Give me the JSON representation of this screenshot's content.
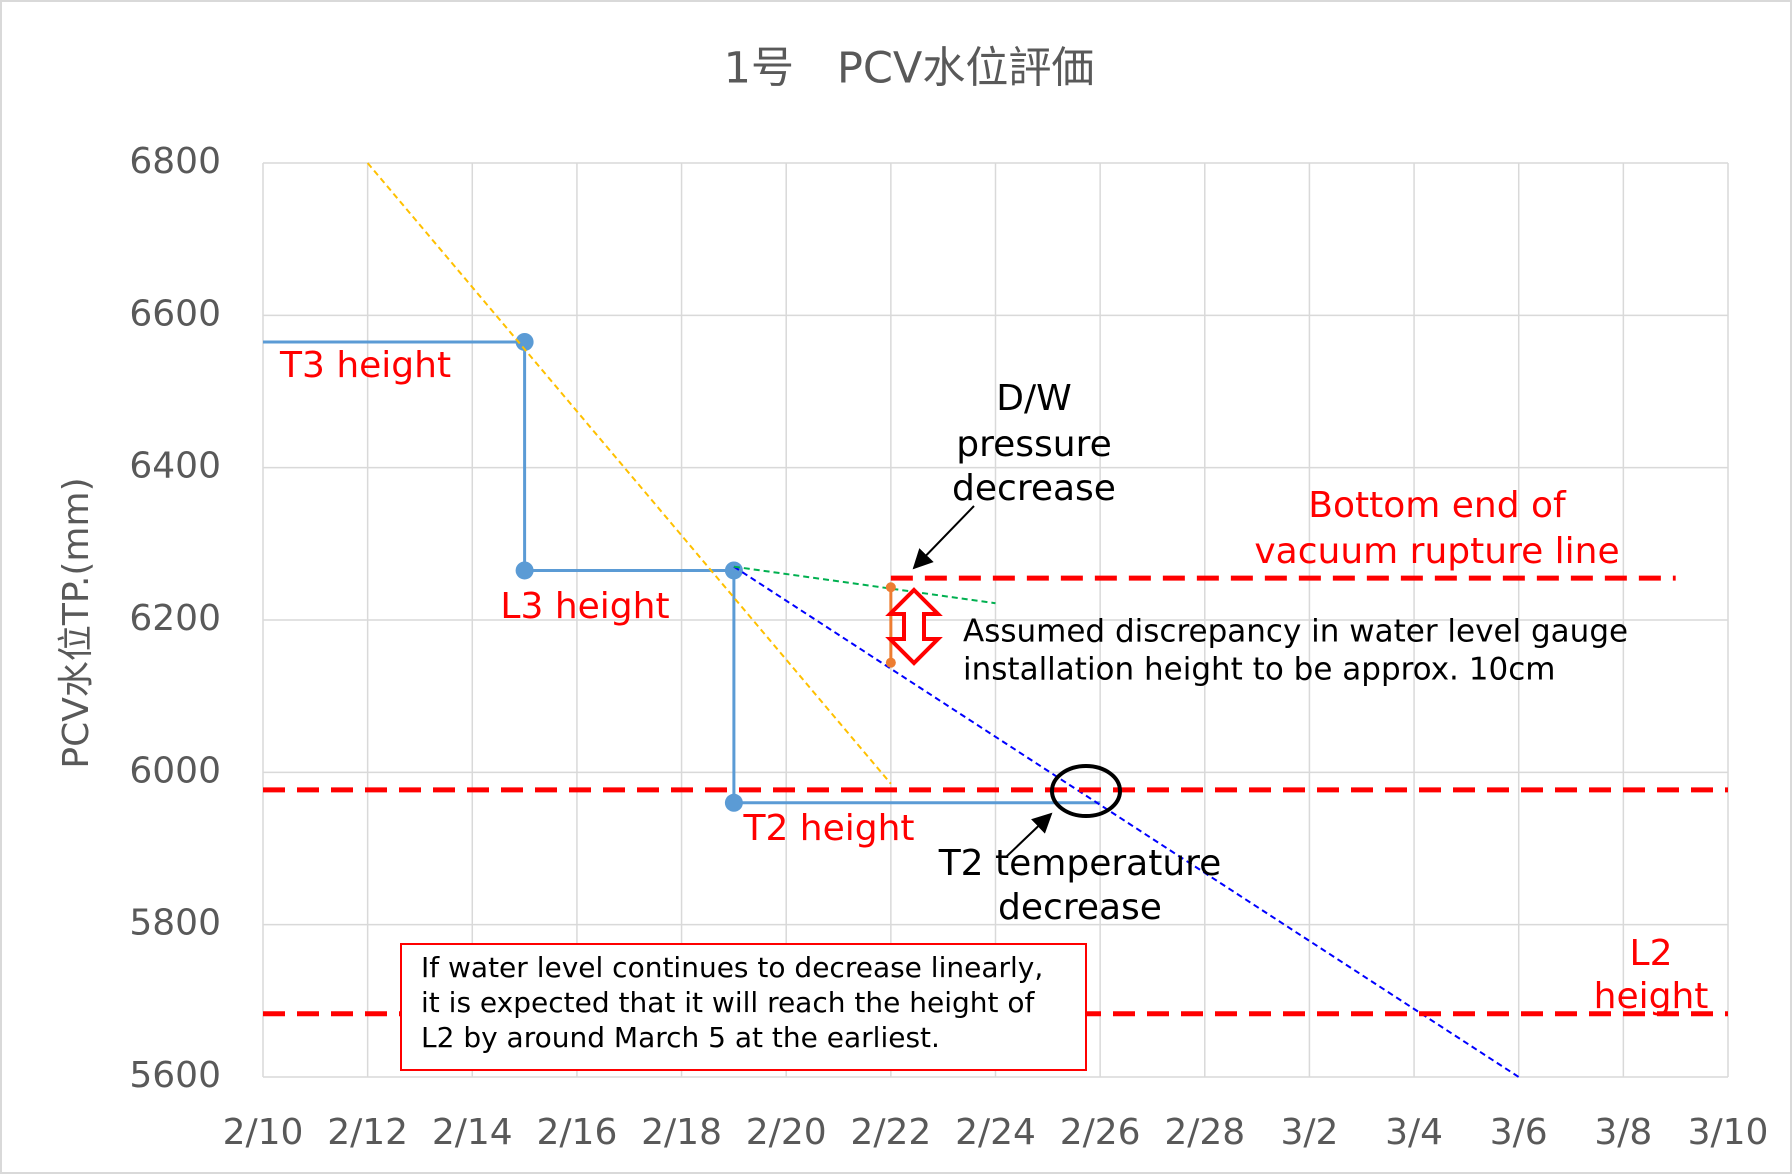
{
  "chart_data": {
    "type": "line",
    "title": "1号　PCV水位評価",
    "y_label": "PCV水位TP.(mm)",
    "xlim": [
      "2/10",
      "3/10"
    ],
    "xticks": [
      "2/10",
      "2/12",
      "2/14",
      "2/16",
      "2/18",
      "2/20",
      "2/22",
      "2/24",
      "2/26",
      "2/28",
      "3/2",
      "3/4",
      "3/6",
      "3/8",
      "3/10"
    ],
    "ylim": [
      5600,
      6800
    ],
    "yticks": [
      5600,
      5800,
      6000,
      6200,
      6400,
      6600,
      6800
    ],
    "grid": true,
    "series": [
      {
        "color": "#5b9bd5",
        "style": "solid",
        "x": [
          "2/10",
          "2/15",
          "2/15",
          "2/19",
          "2/19",
          "2/26"
        ],
        "values": [
          6565,
          6565,
          6265,
          6265,
          5960,
          5960
        ],
        "markers": [
          false,
          true,
          true,
          true,
          true,
          false
        ]
      },
      {
        "color": "#ffc000",
        "style": "dotted",
        "x": [
          "2/12",
          "2/22"
        ],
        "values": [
          6800,
          5985
        ]
      },
      {
        "color": "#0000ff",
        "style": "dotted",
        "x": [
          "2/19",
          "3/6"
        ],
        "values": [
          6270,
          5600
        ]
      },
      {
        "color": "#00b050",
        "style": "dotted",
        "x": [
          "2/19",
          "2/24"
        ],
        "values": [
          6270,
          6222
        ]
      },
      {
        "color": "#ed7d31",
        "style": "solid",
        "x": [
          "2/22",
          "2/22"
        ],
        "values": [
          6243,
          6144
        ],
        "markers": [
          true,
          true
        ]
      },
      {
        "color": "#ff0000",
        "style": "dashed",
        "x": [
          "2/22",
          "3/9"
        ],
        "values": [
          6255,
          6255
        ]
      },
      {
        "color": "#ff0000",
        "style": "dashed",
        "x": [
          "2/10",
          "3/10"
        ],
        "values": [
          5977,
          5977
        ]
      },
      {
        "color": "#ff0000",
        "style": "dashed",
        "x": [
          "2/10",
          "3/10"
        ],
        "values": [
          5683,
          5683
        ]
      }
    ],
    "annotations": [
      [
        "T3 height"
      ],
      [
        "L3 height"
      ],
      [
        "T2 height"
      ],
      [
        "D/W",
        "pressure",
        "decrease"
      ],
      [
        "Bottom end of",
        "vacuum rupture line"
      ],
      [
        "Assumed discrepancy in water level gauge",
        "installation height to be approx. 10cm"
      ],
      [
        "T2 temperature",
        "decrease"
      ],
      [
        "L2",
        "height"
      ],
      [
        "If water level continues to decrease linearly,",
        "it is expected that it will reach the height of",
        "L2 by around March 5 at the earliest."
      ]
    ]
  }
}
